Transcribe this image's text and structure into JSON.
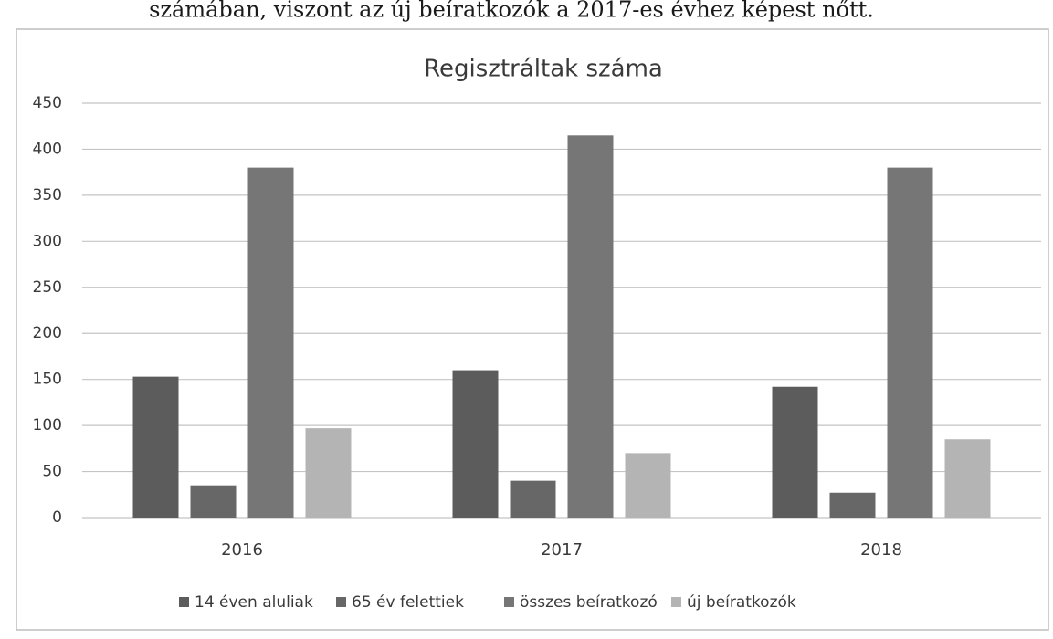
{
  "caption": "számában, viszont az új beíratkozók a 2017-es évhez képest nőtt.",
  "chart_data": {
    "type": "bar",
    "title": "Regisztráltak száma",
    "categories": [
      "2016",
      "2017",
      "2018"
    ],
    "series": [
      {
        "name": "14 éven aluliak",
        "color": "#5c5c5c",
        "values": [
          153,
          160,
          142
        ]
      },
      {
        "name": "65 év felettiek",
        "color": "#676767",
        "values": [
          35,
          40,
          27
        ]
      },
      {
        "name": "összes beíratkozó",
        "color": "#767676",
        "values": [
          380,
          415,
          380
        ]
      },
      {
        "name": "új beíratkozók",
        "color": "#b4b4b4",
        "values": [
          97,
          70,
          85
        ]
      }
    ],
    "ylim": [
      0,
      450
    ],
    "yticks": [
      0,
      50,
      100,
      150,
      200,
      250,
      300,
      350,
      400,
      450
    ],
    "grid": true,
    "legend": "bottom"
  }
}
